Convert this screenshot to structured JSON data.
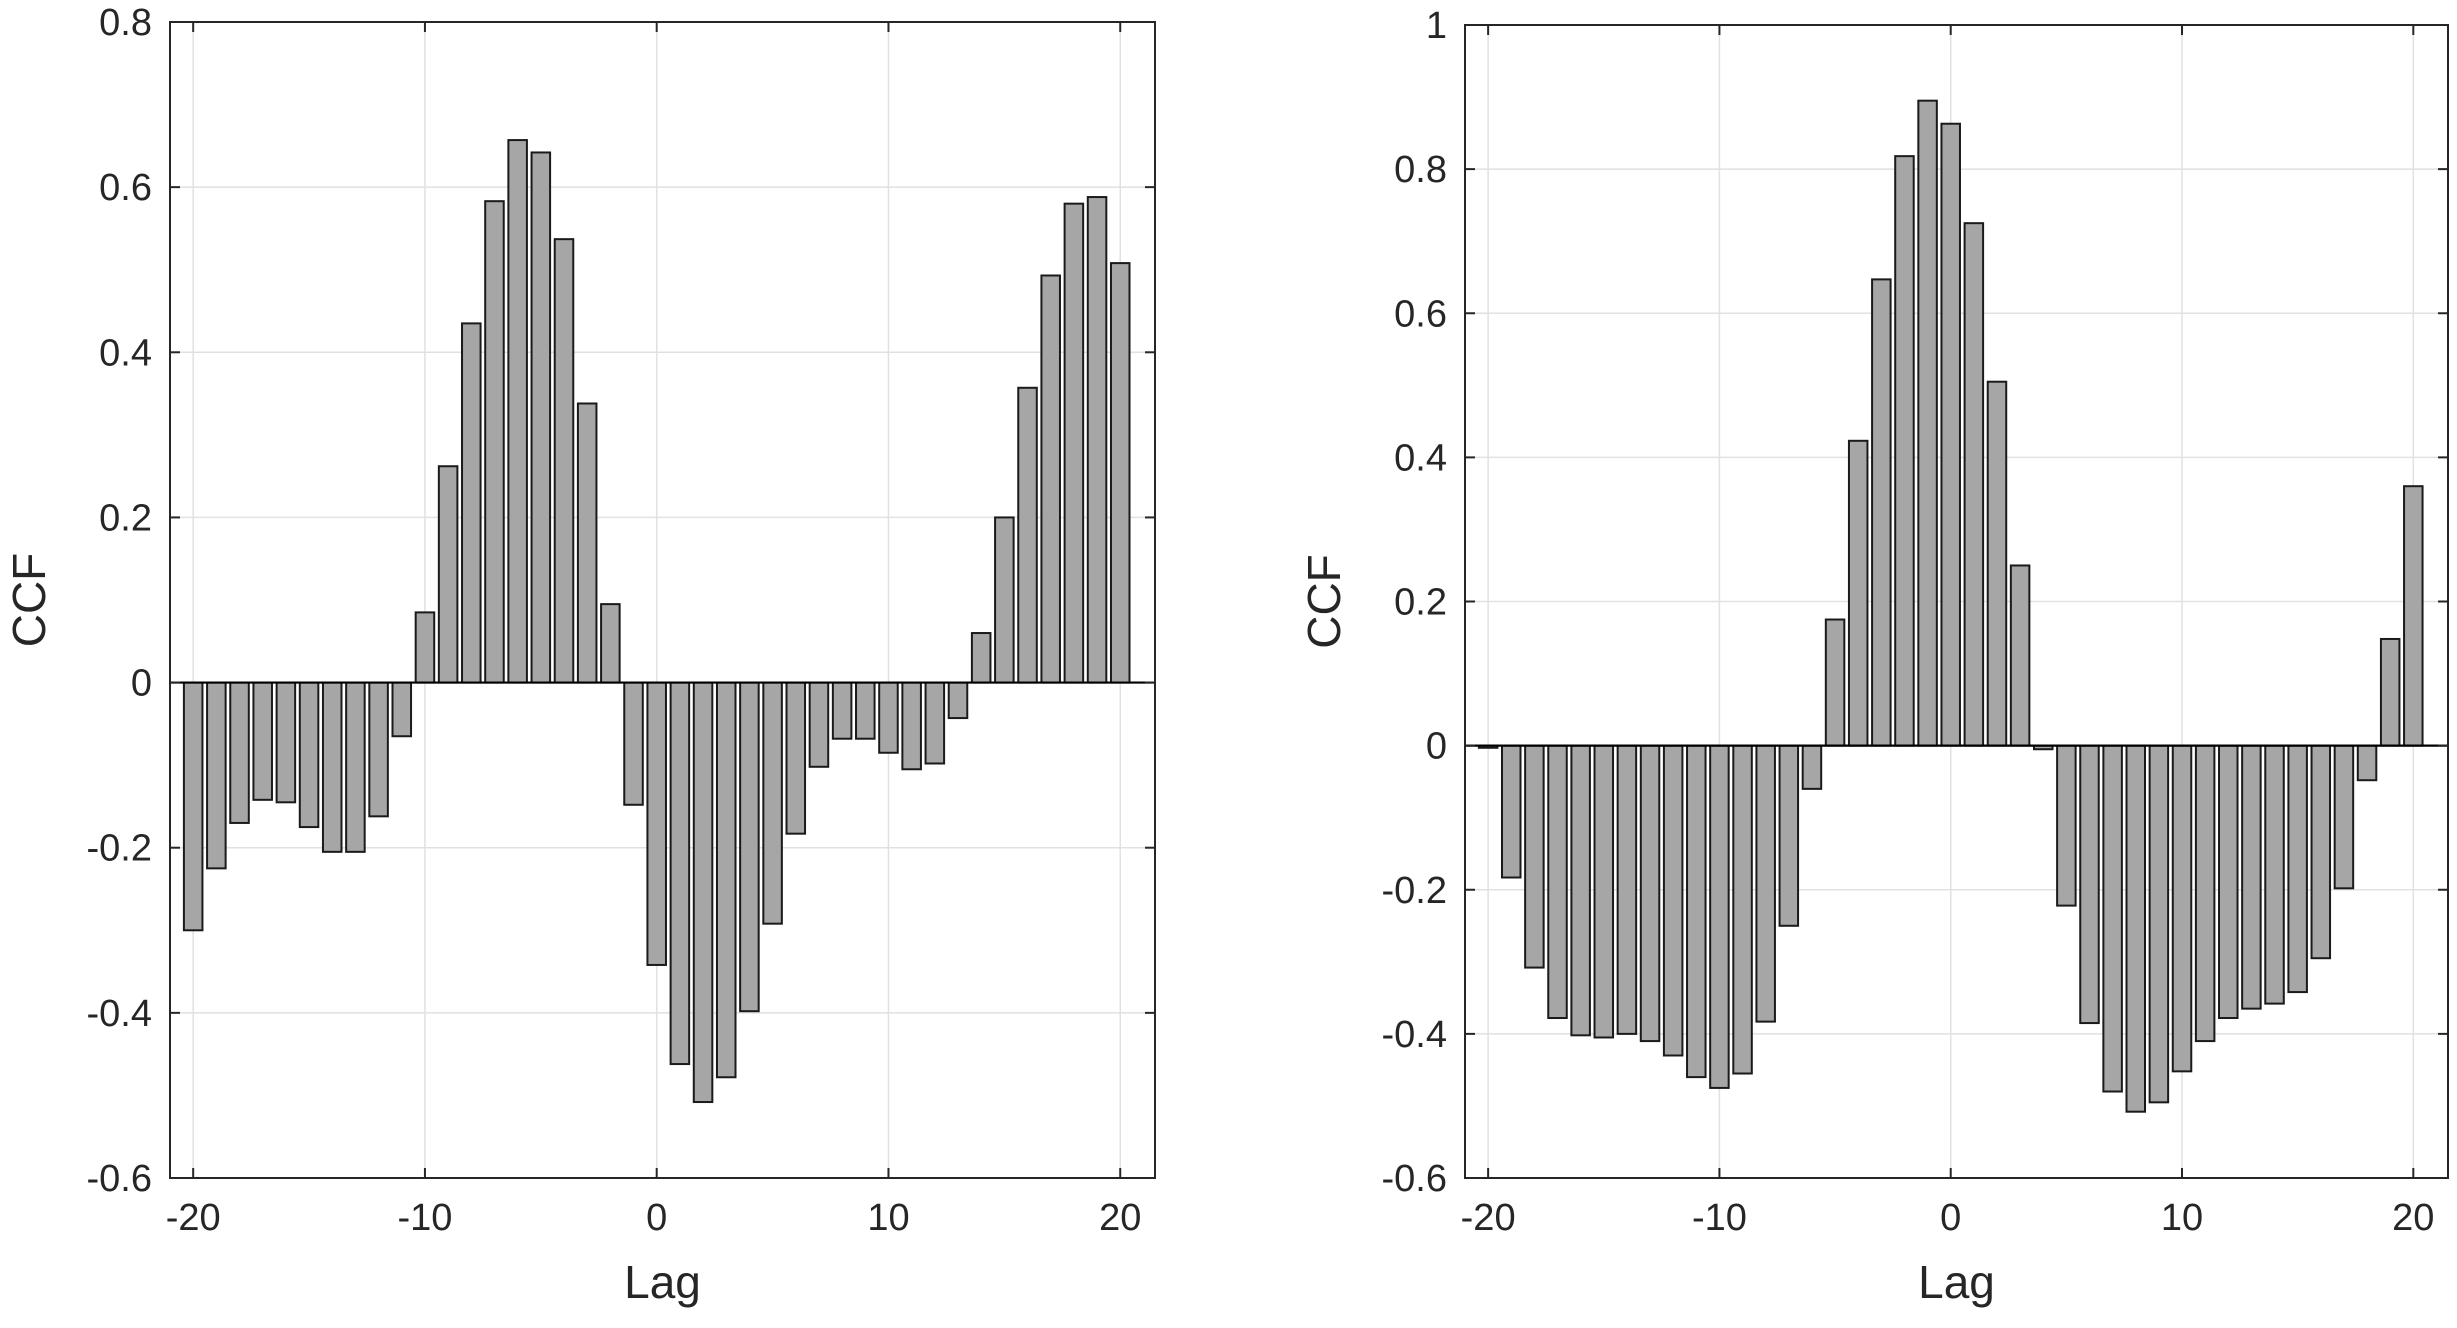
{
  "chart_data": [
    {
      "type": "bar",
      "title": "",
      "xlabel": "Lag",
      "ylabel": "CCF",
      "xlim": [
        -21,
        21.5
      ],
      "ylim": [
        -0.6,
        0.8
      ],
      "grid": true,
      "xticks": [
        -20,
        -10,
        0,
        10,
        20
      ],
      "xtick_labels": [
        "-20",
        "-10",
        "0",
        "10",
        "20"
      ],
      "yticks": [
        -0.6,
        -0.4,
        -0.2,
        0,
        0.2,
        0.4,
        0.6,
        0.8
      ],
      "ytick_labels": [
        "-0.6",
        "-0.4",
        "-0.2",
        "0",
        "0.2",
        "0.4",
        "0.6",
        "0.8"
      ],
      "x": [
        -20,
        -19,
        -18,
        -17,
        -16,
        -15,
        -14,
        -13,
        -12,
        -11,
        -10,
        -9,
        -8,
        -7,
        -6,
        -5,
        -4,
        -3,
        -2,
        -1,
        0,
        1,
        2,
        3,
        4,
        5,
        6,
        7,
        8,
        9,
        10,
        11,
        12,
        13,
        14,
        15,
        16,
        17,
        18,
        19,
        20
      ],
      "values": [
        -0.3,
        -0.225,
        -0.17,
        -0.142,
        -0.145,
        -0.175,
        -0.205,
        -0.205,
        -0.162,
        -0.065,
        0.085,
        0.262,
        0.435,
        0.583,
        0.657,
        0.642,
        0.537,
        0.338,
        0.095,
        -0.148,
        -0.342,
        -0.462,
        -0.508,
        -0.478,
        -0.398,
        -0.292,
        -0.183,
        -0.102,
        -0.068,
        -0.068,
        -0.085,
        -0.105,
        -0.098,
        -0.043,
        0.06,
        0.2,
        0.357,
        0.493,
        0.58,
        0.588,
        0.508
      ]
    },
    {
      "type": "bar",
      "title": "",
      "xlabel": "Lag",
      "ylabel": "CCF",
      "xlim": [
        -21,
        21.5
      ],
      "ylim": [
        -0.6,
        1
      ],
      "grid": true,
      "xticks": [
        -20,
        -10,
        0,
        10,
        20
      ],
      "xtick_labels": [
        "-20",
        "-10",
        "0",
        "10",
        "20"
      ],
      "yticks": [
        -0.6,
        -0.4,
        -0.2,
        0,
        0.2,
        0.4,
        0.6,
        0.8,
        1
      ],
      "ytick_labels": [
        "-0.6",
        "-0.4",
        "-0.2",
        "0",
        "0.2",
        "0.4",
        "0.6",
        "0.8",
        "1"
      ],
      "x": [
        -20,
        -19,
        -18,
        -17,
        -16,
        -15,
        -14,
        -13,
        -12,
        -11,
        -10,
        -9,
        -8,
        -7,
        -6,
        -5,
        -4,
        -3,
        -2,
        -1,
        0,
        1,
        2,
        3,
        4,
        5,
        6,
        7,
        8,
        9,
        10,
        11,
        12,
        13,
        14,
        15,
        16,
        17,
        18,
        19,
        20
      ],
      "values": [
        -0.003,
        -0.183,
        -0.308,
        -0.378,
        -0.402,
        -0.405,
        -0.4,
        -0.41,
        -0.43,
        -0.46,
        -0.475,
        -0.455,
        -0.383,
        -0.25,
        -0.06,
        0.175,
        0.423,
        0.647,
        0.818,
        0.895,
        0.863,
        0.725,
        0.505,
        0.25,
        -0.005,
        -0.222,
        -0.385,
        -0.48,
        -0.508,
        -0.495,
        -0.452,
        -0.41,
        -0.378,
        -0.365,
        -0.358,
        -0.342,
        -0.295,
        -0.198,
        -0.048,
        0.148,
        0.36
      ]
    }
  ]
}
